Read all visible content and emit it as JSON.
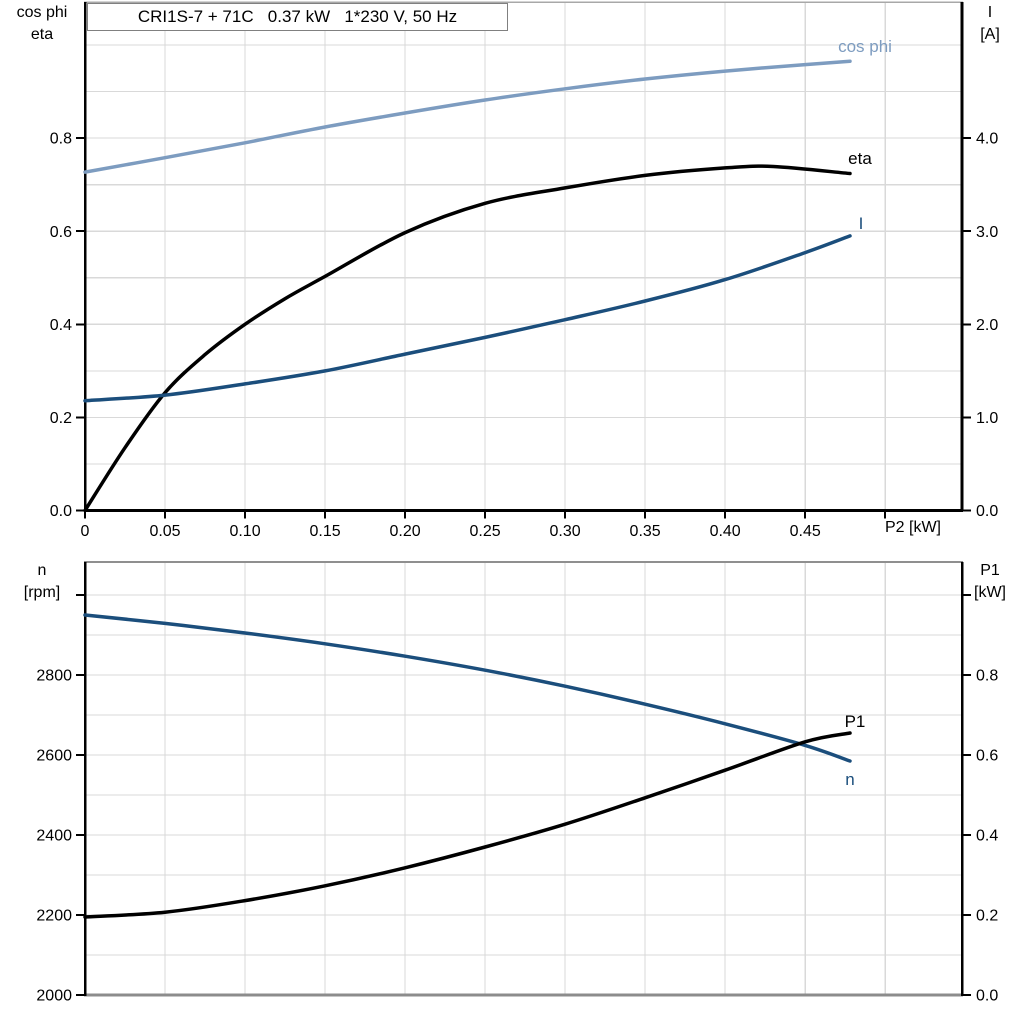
{
  "title_box": {
    "text": "CRI1S-7 + 71C   0.37 kW   1*230 V, 50 Hz"
  },
  "colors": {
    "dark_blue": "#1b4e7c",
    "light_blue": "#7d9cc0",
    "black": "#000000",
    "grid": "#d9d9d9",
    "frame_gray": "#8c8c8c"
  },
  "corner_labels": {
    "top_left": [
      "cos phi",
      "eta"
    ],
    "top_right": [
      "I",
      "[A]"
    ],
    "bottom_left": [
      "n",
      "[rpm]"
    ],
    "bottom_right": [
      "P1",
      "[kW]"
    ],
    "x_axis_label": "P2 [kW]"
  },
  "chart_data": [
    {
      "id": "motor-curves-top",
      "type": "line",
      "grid": true,
      "x_axis": {
        "label": "P2 [kW]",
        "range": [
          0,
          0.548
        ],
        "grid_step": 0.05,
        "ticks": [
          [
            "0",
            0
          ],
          [
            "0.05",
            0.05
          ],
          [
            "0.10",
            0.1
          ],
          [
            "0.15",
            0.15
          ],
          [
            "0.20",
            0.2
          ],
          [
            "0.25",
            0.25
          ],
          [
            "0.30",
            0.3
          ],
          [
            "0.35",
            0.35
          ],
          [
            "0.40",
            0.4
          ],
          [
            "0.45",
            0.45
          ],
          [
            "",
            0.5
          ]
        ]
      },
      "left_axis": {
        "label": "cos phi / eta",
        "range": [
          0,
          1.0925
        ],
        "grid_step": 0.1,
        "ticks": [
          [
            "0.0",
            0.0
          ],
          [
            "0.2",
            0.2
          ],
          [
            "0.4",
            0.4
          ],
          [
            "0.6",
            0.6
          ],
          [
            "0.8",
            0.8
          ]
        ]
      },
      "right_axis": {
        "label": "I [A]",
        "range": [
          0,
          5.4624
        ],
        "ticks": [
          [
            "0.0",
            0.0
          ],
          [
            "1.0",
            1.0
          ],
          [
            "2.0",
            2.0
          ],
          [
            "3.0",
            3.0
          ],
          [
            "4.0",
            4.0
          ]
        ]
      },
      "series": [
        {
          "name": "cos phi",
          "axis": "left",
          "color_key": "light_blue",
          "x": [
            0,
            0.05,
            0.1,
            0.15,
            0.2,
            0.25,
            0.3,
            0.35,
            0.4,
            0.45,
            0.478
          ],
          "y": [
            0.727,
            0.758,
            0.79,
            0.824,
            0.854,
            0.882,
            0.906,
            0.927,
            0.944,
            0.958,
            0.965
          ]
        },
        {
          "name": "eta",
          "axis": "left",
          "color_key": "black",
          "x": [
            0,
            0.025,
            0.05,
            0.075,
            0.1,
            0.125,
            0.15,
            0.2,
            0.25,
            0.3,
            0.35,
            0.4,
            0.43,
            0.478
          ],
          "y": [
            0,
            0.135,
            0.253,
            0.335,
            0.4,
            0.455,
            0.503,
            0.597,
            0.66,
            0.693,
            0.72,
            0.736,
            0.739,
            0.724
          ]
        },
        {
          "name": "I",
          "axis": "right",
          "color_key": "dark_blue",
          "x": [
            0,
            0.05,
            0.1,
            0.15,
            0.2,
            0.25,
            0.3,
            0.35,
            0.4,
            0.45,
            0.478
          ],
          "y": [
            1.18,
            1.24,
            1.36,
            1.5,
            1.68,
            1.86,
            2.05,
            2.25,
            2.48,
            2.77,
            2.95
          ]
        }
      ],
      "labels": [
        {
          "text": "cos phi",
          "color_key": "light_blue",
          "px": [
            865,
            46
          ]
        },
        {
          "text": "eta",
          "color_key": "black",
          "px": [
            860,
            158
          ]
        },
        {
          "text": "I",
          "color_key": "dark_blue",
          "px": [
            861,
            223
          ]
        }
      ]
    },
    {
      "id": "motor-curves-bottom",
      "type": "line",
      "grid": true,
      "x_axis": {
        "label": "",
        "range": [
          0,
          0.548
        ],
        "grid_step": 0.05,
        "ticks": []
      },
      "left_axis": {
        "label": "n [rpm]",
        "range": [
          2000,
          3082.5
        ],
        "grid_step": 100,
        "ticks": [
          [
            "2000",
            2000
          ],
          [
            "2200",
            2200
          ],
          [
            "2400",
            2400
          ],
          [
            "2600",
            2600
          ],
          [
            "2800",
            2800
          ],
          [
            "",
            3000
          ]
        ]
      },
      "right_axis": {
        "label": "P1 [kW]",
        "range": [
          0,
          1.0825
        ],
        "ticks": [
          [
            "0.0",
            0.0
          ],
          [
            "0.2",
            0.2
          ],
          [
            "0.4",
            0.4
          ],
          [
            "0.6",
            0.6
          ],
          [
            "0.8",
            0.8
          ],
          [
            "",
            1.0
          ]
        ]
      },
      "series": [
        {
          "name": "n",
          "axis": "left",
          "color_key": "dark_blue",
          "x": [
            0,
            0.05,
            0.1,
            0.15,
            0.2,
            0.25,
            0.3,
            0.35,
            0.4,
            0.45,
            0.478
          ],
          "y": [
            2950,
            2929,
            2905,
            2878,
            2847,
            2812,
            2772,
            2727,
            2678,
            2624,
            2585
          ]
        },
        {
          "name": "P1",
          "axis": "right",
          "color_key": "black",
          "x": [
            0,
            0.05,
            0.1,
            0.15,
            0.2,
            0.25,
            0.3,
            0.35,
            0.4,
            0.45,
            0.478
          ],
          "y": [
            0.195,
            0.207,
            0.236,
            0.273,
            0.318,
            0.37,
            0.427,
            0.493,
            0.562,
            0.633,
            0.655
          ]
        }
      ],
      "labels": [
        {
          "text": "P1",
          "color_key": "black",
          "px": [
            855,
            721
          ]
        },
        {
          "text": "n",
          "color_key": "dark_blue",
          "px": [
            850,
            779
          ]
        }
      ]
    }
  ]
}
